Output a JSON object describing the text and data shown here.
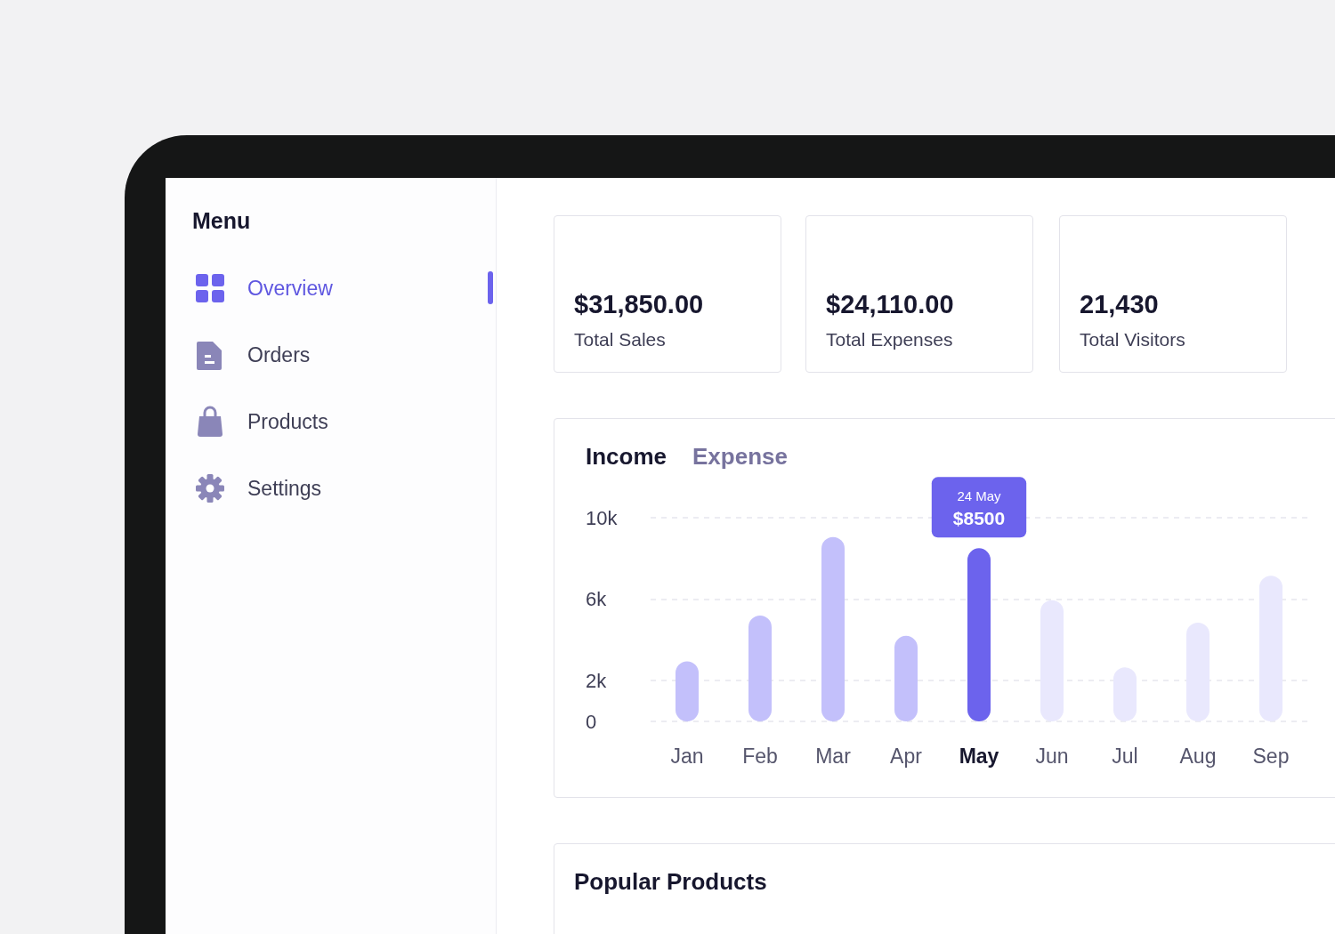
{
  "chart_data": [
    {
      "type": "other",
      "title": "Menu",
      "annotations": [
        "Overview",
        "Orders",
        "Products",
        "Settings"
      ]
    },
    {
      "type": "other",
      "title": "$31,850.00",
      "subtitle": "Total Sales"
    },
    {
      "type": "other",
      "title": "$24,110.00",
      "subtitle": "Total Expenses"
    },
    {
      "type": "other",
      "title": "21,430",
      "subtitle": "Total Visitors"
    },
    {
      "type": "bar",
      "categories": [
        "Jan",
        "Feb",
        "Mar",
        "Apr",
        "May",
        "Jun",
        "Jul",
        "Aug",
        "Sep"
      ],
      "values": [
        2950,
        5200,
        9050,
        4200,
        8500,
        5950,
        2650,
        4850,
        7150
      ],
      "colors": [
        "#c3c0fb",
        "#c3c0fb",
        "#c3c0fb",
        "#c3c0fb",
        "#6c63ed",
        "#e9e8fd",
        "#e9e8fd",
        "#e9e8fd",
        "#e9e8fd"
      ],
      "value_labels": [
        null,
        null,
        null,
        null,
        "$8500",
        null,
        null,
        null,
        null
      ],
      "annotations": [
        "Income",
        "Expense",
        "24 May"
      ],
      "ylim": [
        0,
        10000
      ],
      "yticks": [
        {
          "value": 0,
          "label": "0"
        },
        {
          "value": 2000,
          "label": "2k"
        },
        {
          "value": 6000,
          "label": "6k"
        },
        {
          "value": 10000,
          "label": "10k"
        }
      ],
      "grid": "y"
    },
    {
      "type": "other",
      "title": "Popular Products"
    }
  ]
}
